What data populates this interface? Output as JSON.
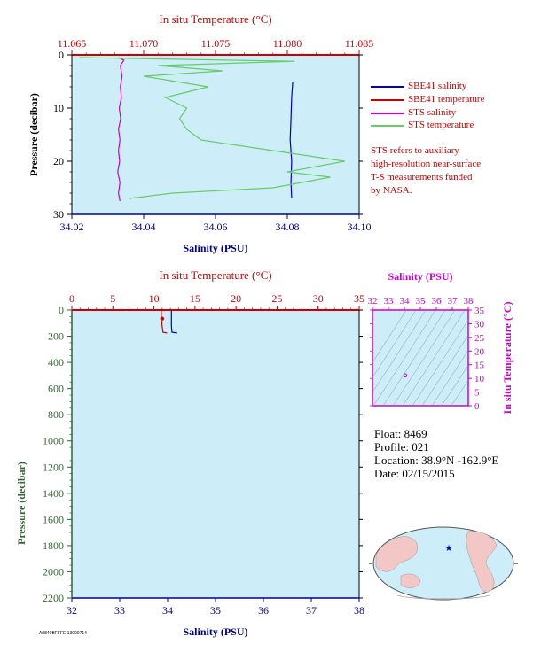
{
  "colors": {
    "plot_bg": "#cdeef8",
    "sbe41_salinity": "#0000cc",
    "sbe41_temperature": "#cc0000",
    "sts_salinity": "#cc00cc",
    "sts_temperature": "#66cc66",
    "axis_salinity": "#000099",
    "axis_temperature": "#cc0000",
    "axis_pressure": "#336633",
    "ts_axis": "#cc00cc"
  },
  "legend": [
    {
      "label": "SBE41 salinity",
      "color": "#0000cc"
    },
    {
      "label": "SBE41 temperature",
      "color": "#cc0000"
    },
    {
      "label": "STS salinity",
      "color": "#cc00cc"
    },
    {
      "label": "STS temperature",
      "color": "#66cc66"
    }
  ],
  "note_lines": [
    "STS refers to auxiliary",
    "high-resolution near-surface",
    "T-S measurements funded",
    "by NASA."
  ],
  "float_info": {
    "float": "Float:  8469",
    "profile": "Profile:  021",
    "location": "Location:  38.9°N  -162.9°E",
    "date": "Date:  02/15/2015"
  },
  "footer_code": "A0840BFFFE 13000714",
  "chart_data": [
    {
      "type": "line",
      "panel": "upper",
      "xlabel_top": "In situ Temperature (°C)",
      "xlabel_bottom": "Salinity (PSU)",
      "ylabel": "Pressure (decibar)",
      "temp_ticks": [
        "11.065",
        "11.070",
        "11.075",
        "11.080",
        "11.085"
      ],
      "temp_lim": [
        11.065,
        11.085
      ],
      "sal_ticks": [
        "34.02",
        "34.04",
        "34.06",
        "34.08",
        "34.10"
      ],
      "sal_lim": [
        34.02,
        34.1
      ],
      "pressure_ticks": [
        "0",
        "10",
        "20",
        "30"
      ],
      "pressure_lim": [
        0,
        30
      ],
      "series": [
        {
          "name": "SBE41 salinity",
          "axis": "salinity",
          "points": [
            [
              34.0815,
              5
            ],
            [
              34.0812,
              8
            ],
            [
              34.081,
              12
            ],
            [
              34.0808,
              16
            ],
            [
              34.0812,
              20
            ],
            [
              34.081,
              24
            ],
            [
              34.0812,
              27
            ]
          ]
        },
        {
          "name": "STS salinity",
          "axis": "salinity",
          "points": [
            [
              34.033,
              0.5
            ],
            [
              34.0345,
              1.0
            ],
            [
              34.0335,
              2
            ],
            [
              34.034,
              4
            ],
            [
              34.0335,
              6
            ],
            [
              34.0338,
              8
            ],
            [
              34.0332,
              10
            ],
            [
              34.0336,
              12
            ],
            [
              34.033,
              14
            ],
            [
              34.0334,
              16
            ],
            [
              34.033,
              18
            ],
            [
              34.0333,
              20
            ],
            [
              34.0328,
              22
            ],
            [
              34.0334,
              24
            ],
            [
              34.033,
              26
            ],
            [
              34.0334,
              27.5
            ]
          ]
        },
        {
          "name": "STS temperature",
          "axis": "temperature",
          "points": [
            [
              11.0655,
              0.5
            ],
            [
              11.0805,
              1.2
            ],
            [
              11.071,
              2
            ],
            [
              11.0755,
              3
            ],
            [
              11.07,
              4
            ],
            [
              11.0745,
              6
            ],
            [
              11.0715,
              8
            ],
            [
              11.073,
              10
            ],
            [
              11.0725,
              12
            ],
            [
              11.073,
              14
            ],
            [
              11.074,
              16
            ],
            [
              11.079,
              18
            ],
            [
              11.0815,
              19
            ],
            [
              11.084,
              20
            ],
            [
              11.08,
              22
            ],
            [
              11.083,
              23
            ],
            [
              11.079,
              25
            ],
            [
              11.072,
              26
            ],
            [
              11.069,
              27
            ]
          ]
        }
      ]
    },
    {
      "type": "line",
      "panel": "lower",
      "xlabel_top": "In situ Temperature (°C)",
      "xlabel_bottom": "Salinity (PSU)",
      "ylabel": "Pressure (decibar)",
      "temp_ticks": [
        "0",
        "5",
        "10",
        "15",
        "20",
        "25",
        "30",
        "35"
      ],
      "temp_lim": [
        0,
        35
      ],
      "sal_ticks": [
        "32",
        "33",
        "34",
        "35",
        "36",
        "37",
        "38"
      ],
      "sal_lim": [
        32,
        38
      ],
      "pressure_ticks": [
        "0",
        "200",
        "400",
        "600",
        "800",
        "1000",
        "1200",
        "1400",
        "1600",
        "1800",
        "2000",
        "2200"
      ],
      "pressure_lim": [
        0,
        2200
      ],
      "series": [
        {
          "name": "SBE41 salinity",
          "axis": "salinity",
          "points": [
            [
              34.08,
              0
            ],
            [
              34.08,
              60
            ],
            [
              34.08,
              120
            ],
            [
              34.09,
              170
            ],
            [
              34.2,
              175
            ]
          ]
        },
        {
          "name": "SBE41 temperature",
          "axis": "temperature",
          "points": [
            [
              10.9,
              0
            ],
            [
              10.9,
              60
            ],
            [
              11.0,
              120
            ],
            [
              11.1,
              170
            ],
            [
              11.6,
              175
            ]
          ]
        }
      ]
    },
    {
      "type": "scatter",
      "panel": "ts_diagram",
      "xlabel": "Salinity (PSU)",
      "ylabel": "In situ Temperature (°C)",
      "sal_ticks": [
        "32",
        "33",
        "34",
        "35",
        "36",
        "37",
        "38"
      ],
      "sal_lim": [
        32,
        38
      ],
      "temp_ticks": [
        "0",
        "5",
        "10",
        "15",
        "20",
        "25",
        "30",
        "35"
      ],
      "temp_lim": [
        0,
        35
      ],
      "points": [
        [
          34.05,
          11.07
        ]
      ]
    }
  ],
  "map": {
    "marker": "star",
    "location": "38.9°N -162.9°E"
  }
}
